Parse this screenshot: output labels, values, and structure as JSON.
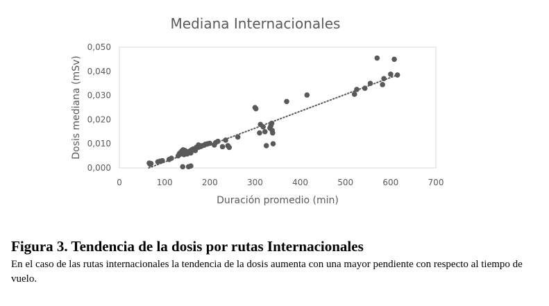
{
  "chart_data": {
    "type": "scatter",
    "title": "Mediana Internacionales",
    "xlabel": "Duración promedio (min)",
    "ylabel": "Dosis mediana (mSv)",
    "xlim": [
      0,
      700
    ],
    "ylim": [
      0,
      0.05
    ],
    "x_ticks": [
      0,
      100,
      200,
      300,
      400,
      500,
      600,
      700
    ],
    "y_ticks": [
      0,
      0.01,
      0.02,
      0.03,
      0.04,
      0.05
    ],
    "x_tick_labels": [
      "0",
      "100",
      "200",
      "300",
      "400",
      "500",
      "600",
      "700"
    ],
    "y_tick_labels": [
      "0,000",
      "0,010",
      "0,020",
      "0,030",
      "0,040",
      "0,050"
    ],
    "grid": false,
    "legend": "none",
    "marker_color": "#595959",
    "trendline": {
      "style": "dotted",
      "color": "#595959",
      "x": [
        65,
        615
      ],
      "y": [
        0.0,
        0.0385
      ]
    },
    "points": [
      {
        "x": 66,
        "y": 0.002
      },
      {
        "x": 68,
        "y": 0.0015
      },
      {
        "x": 70,
        "y": 0.0018
      },
      {
        "x": 85,
        "y": 0.0025
      },
      {
        "x": 90,
        "y": 0.0028
      },
      {
        "x": 95,
        "y": 0.003
      },
      {
        "x": 110,
        "y": 0.0035
      },
      {
        "x": 115,
        "y": 0.004
      },
      {
        "x": 130,
        "y": 0.005
      },
      {
        "x": 133,
        "y": 0.006
      },
      {
        "x": 136,
        "y": 0.0065
      },
      {
        "x": 138,
        "y": 0.007
      },
      {
        "x": 141,
        "y": 0.0075
      },
      {
        "x": 143,
        "y": 0.0055
      },
      {
        "x": 145,
        "y": 0.0072
      },
      {
        "x": 148,
        "y": 0.0068
      },
      {
        "x": 150,
        "y": 0.0058
      },
      {
        "x": 153,
        "y": 0.0064
      },
      {
        "x": 156,
        "y": 0.007
      },
      {
        "x": 158,
        "y": 0.0062
      },
      {
        "x": 160,
        "y": 0.0075
      },
      {
        "x": 163,
        "y": 0.0078
      },
      {
        "x": 168,
        "y": 0.0072
      },
      {
        "x": 170,
        "y": 0.0085
      },
      {
        "x": 175,
        "y": 0.0095
      },
      {
        "x": 178,
        "y": 0.0088
      },
      {
        "x": 183,
        "y": 0.0092
      },
      {
        "x": 190,
        "y": 0.0098
      },
      {
        "x": 195,
        "y": 0.01
      },
      {
        "x": 200,
        "y": 0.0102
      },
      {
        "x": 210,
        "y": 0.0095
      },
      {
        "x": 213,
        "y": 0.0105
      },
      {
        "x": 218,
        "y": 0.011
      },
      {
        "x": 228,
        "y": 0.0088
      },
      {
        "x": 235,
        "y": 0.0115
      },
      {
        "x": 240,
        "y": 0.0092
      },
      {
        "x": 243,
        "y": 0.0085
      },
      {
        "x": 262,
        "y": 0.0128
      },
      {
        "x": 140,
        "y": 0.0005
      },
      {
        "x": 153,
        "y": 0.0005
      },
      {
        "x": 158,
        "y": 0.0008
      },
      {
        "x": 300,
        "y": 0.025
      },
      {
        "x": 302,
        "y": 0.0245
      },
      {
        "x": 310,
        "y": 0.0145
      },
      {
        "x": 312,
        "y": 0.018
      },
      {
        "x": 318,
        "y": 0.017
      },
      {
        "x": 322,
        "y": 0.015
      },
      {
        "x": 325,
        "y": 0.0092
      },
      {
        "x": 333,
        "y": 0.0165
      },
      {
        "x": 335,
        "y": 0.0175
      },
      {
        "x": 337,
        "y": 0.0185
      },
      {
        "x": 338,
        "y": 0.0155
      },
      {
        "x": 339,
        "y": 0.0145
      },
      {
        "x": 340,
        "y": 0.01
      },
      {
        "x": 370,
        "y": 0.0275
      },
      {
        "x": 415,
        "y": 0.0302
      },
      {
        "x": 520,
        "y": 0.0305
      },
      {
        "x": 525,
        "y": 0.0325
      },
      {
        "x": 543,
        "y": 0.033
      },
      {
        "x": 555,
        "y": 0.035
      },
      {
        "x": 570,
        "y": 0.0455
      },
      {
        "x": 582,
        "y": 0.0345
      },
      {
        "x": 585,
        "y": 0.037
      },
      {
        "x": 600,
        "y": 0.0388
      },
      {
        "x": 608,
        "y": 0.045
      },
      {
        "x": 615,
        "y": 0.0385
      }
    ]
  },
  "caption": {
    "title": "Figura 3. Tendencia de la dosis por rutas Internacionales",
    "body": "En el caso de las rutas internacionales la tendencia de la dosis aumenta con una mayor pendiente con respecto al tiempo de vuelo."
  }
}
